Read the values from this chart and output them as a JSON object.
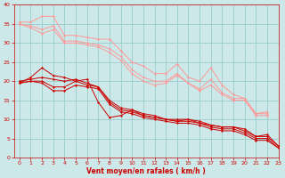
{
  "background_color": "#cce8e8",
  "grid_color": "#99cccc",
  "xlabel": "Vent moyen/en rafales ( km/h )",
  "xlabel_color": "#cc0000",
  "tick_color": "#cc0000",
  "xlim": [
    -0.5,
    23
  ],
  "ylim": [
    0,
    40
  ],
  "xticks": [
    0,
    1,
    2,
    3,
    4,
    5,
    6,
    7,
    8,
    9,
    10,
    11,
    12,
    13,
    14,
    15,
    16,
    17,
    18,
    19,
    20,
    21,
    22,
    23
  ],
  "yticks": [
    0,
    5,
    10,
    15,
    20,
    25,
    30,
    35,
    40
  ],
  "series_light": [
    {
      "y": [
        35.5,
        35.5,
        37.0,
        37.0,
        32.0,
        32.0,
        31.5,
        31.0,
        31.0,
        28.0,
        25.0,
        24.0,
        22.0,
        22.0,
        24.5,
        21.0,
        20.0,
        23.5,
        19.0,
        16.5,
        15.5,
        11.5,
        12.0,
        null
      ]
    },
    {
      "y": [
        35.0,
        34.5,
        33.5,
        34.5,
        30.5,
        30.5,
        30.0,
        29.5,
        28.5,
        26.5,
        23.0,
        21.0,
        20.0,
        20.0,
        22.0,
        19.5,
        18.0,
        20.5,
        17.0,
        15.5,
        15.5,
        11.5,
        11.5,
        null
      ]
    },
    {
      "y": [
        35.0,
        34.0,
        32.5,
        33.5,
        30.0,
        30.0,
        29.5,
        29.0,
        27.5,
        25.5,
        22.0,
        20.0,
        19.0,
        19.5,
        21.5,
        19.5,
        17.5,
        19.0,
        16.5,
        15.0,
        15.0,
        11.0,
        11.0,
        null
      ]
    }
  ],
  "series_dark": [
    {
      "y": [
        19.5,
        21.0,
        23.5,
        21.5,
        21.0,
        20.0,
        20.5,
        14.5,
        10.5,
        11.0,
        12.5,
        11.0,
        10.5,
        10.0,
        9.5,
        10.0,
        9.5,
        8.5,
        8.0,
        8.0,
        7.5,
        5.5,
        6.0,
        3.0
      ]
    },
    {
      "y": [
        20.0,
        20.5,
        21.0,
        20.5,
        20.0,
        20.5,
        19.5,
        18.5,
        15.0,
        13.0,
        12.5,
        11.5,
        11.0,
        10.0,
        10.0,
        10.0,
        9.0,
        8.5,
        8.0,
        8.0,
        7.0,
        5.5,
        5.5,
        3.0
      ]
    },
    {
      "y": [
        19.5,
        20.0,
        20.0,
        18.5,
        18.5,
        20.0,
        19.0,
        18.5,
        14.5,
        12.5,
        12.0,
        11.0,
        10.5,
        10.0,
        9.5,
        9.5,
        9.0,
        8.0,
        7.5,
        7.5,
        6.5,
        5.0,
        5.0,
        2.5
      ]
    },
    {
      "y": [
        19.5,
        20.0,
        19.5,
        17.5,
        17.5,
        19.0,
        18.5,
        18.0,
        14.0,
        12.0,
        11.5,
        10.5,
        10.0,
        9.5,
        9.0,
        9.0,
        8.5,
        7.5,
        7.0,
        7.0,
        6.0,
        4.5,
        4.5,
        2.5
      ]
    }
  ],
  "light_color": "#ff9999",
  "dark_color": "#cc0000",
  "marker_size": 1.5,
  "linewidth": 0.7
}
